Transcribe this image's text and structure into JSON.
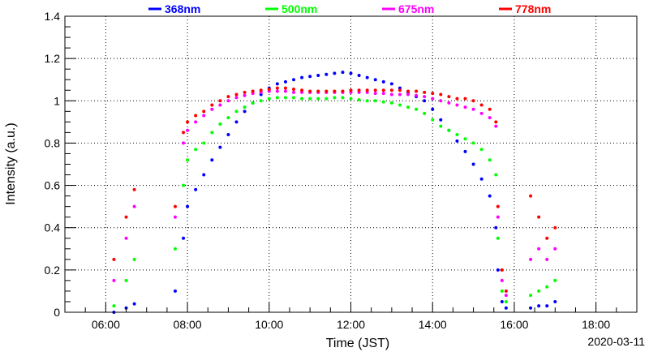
{
  "chart_data": {
    "type": "scatter",
    "xlabel": "Time (JST)",
    "ylabel": "Intensity (a.u.)",
    "date_label": "2020-03-11",
    "xlim": [
      5,
      19
    ],
    "ylim": [
      0,
      1.4
    ],
    "x_ticks": [
      "06:00",
      "08:00",
      "10:00",
      "12:00",
      "14:00",
      "16:00",
      "18:00"
    ],
    "y_ticks": [
      "0",
      "0.2",
      "0.4",
      "0.6",
      "0.8",
      "1",
      "1.2",
      "1.4"
    ],
    "grid": true,
    "legend_position": "top",
    "series": [
      {
        "name": "368nm",
        "color": "#0000ff",
        "x": [
          6.2,
          6.5,
          6.7,
          7.7,
          7.9,
          8.0,
          8.2,
          8.4,
          8.6,
          8.8,
          9.0,
          9.2,
          9.4,
          9.6,
          9.8,
          10.0,
          10.2,
          10.4,
          10.6,
          10.8,
          11.0,
          11.2,
          11.4,
          11.6,
          11.8,
          12.0,
          12.2,
          12.4,
          12.6,
          12.8,
          13.0,
          13.2,
          13.4,
          13.6,
          13.8,
          14.0,
          14.2,
          14.4,
          14.6,
          14.8,
          15.0,
          15.2,
          15.4,
          15.55,
          15.6,
          15.7,
          15.8,
          16.4,
          16.6,
          16.8,
          17.0
        ],
        "y": [
          0.0,
          0.02,
          0.04,
          0.1,
          0.35,
          0.5,
          0.58,
          0.65,
          0.72,
          0.78,
          0.84,
          0.9,
          0.95,
          0.99,
          1.03,
          1.06,
          1.08,
          1.09,
          1.1,
          1.11,
          1.115,
          1.12,
          1.125,
          1.13,
          1.135,
          1.13,
          1.12,
          1.11,
          1.1,
          1.09,
          1.08,
          1.06,
          1.04,
          1.02,
          1.0,
          0.96,
          0.91,
          0.86,
          0.81,
          0.76,
          0.7,
          0.63,
          0.55,
          0.4,
          0.2,
          0.05,
          0.02,
          0.02,
          0.03,
          0.03,
          0.05
        ]
      },
      {
        "name": "500nm",
        "color": "#00ff00",
        "x": [
          6.2,
          6.5,
          6.7,
          7.7,
          7.9,
          8.0,
          8.2,
          8.4,
          8.6,
          8.8,
          9.0,
          9.2,
          9.4,
          9.6,
          9.8,
          10.0,
          10.2,
          10.4,
          10.6,
          10.8,
          11.0,
          11.2,
          11.4,
          11.6,
          11.8,
          12.0,
          12.2,
          12.4,
          12.6,
          12.8,
          13.0,
          13.2,
          13.4,
          13.6,
          13.8,
          14.0,
          14.2,
          14.4,
          14.6,
          14.8,
          15.0,
          15.2,
          15.4,
          15.55,
          15.6,
          15.7,
          15.8,
          16.4,
          16.6,
          16.8,
          17.0
        ],
        "y": [
          0.03,
          0.15,
          0.25,
          0.3,
          0.6,
          0.72,
          0.77,
          0.8,
          0.85,
          0.89,
          0.92,
          0.95,
          0.97,
          0.99,
          1.0,
          1.01,
          1.015,
          1.015,
          1.015,
          1.01,
          1.01,
          1.01,
          1.01,
          1.015,
          1.015,
          1.01,
          1.005,
          1.0,
          1.0,
          0.995,
          0.99,
          0.98,
          0.97,
          0.96,
          0.94,
          0.91,
          0.88,
          0.86,
          0.84,
          0.82,
          0.8,
          0.77,
          0.72,
          0.65,
          0.35,
          0.1,
          0.05,
          0.08,
          0.1,
          0.12,
          0.15
        ]
      },
      {
        "name": "675nm",
        "color": "#ff00ff",
        "x": [
          6.2,
          6.5,
          6.7,
          7.7,
          7.9,
          8.0,
          8.2,
          8.4,
          8.6,
          8.8,
          9.0,
          9.2,
          9.4,
          9.6,
          9.8,
          10.0,
          10.2,
          10.4,
          10.6,
          10.8,
          11.0,
          11.2,
          11.4,
          11.6,
          11.8,
          12.0,
          12.2,
          12.4,
          12.6,
          12.8,
          13.0,
          13.2,
          13.4,
          13.6,
          13.8,
          14.0,
          14.2,
          14.4,
          14.6,
          14.8,
          15.0,
          15.2,
          15.4,
          15.55,
          15.6,
          15.7,
          15.8,
          16.4,
          16.6,
          16.8,
          17.0
        ],
        "y": [
          0.15,
          0.35,
          0.5,
          0.45,
          0.8,
          0.86,
          0.9,
          0.93,
          0.96,
          0.98,
          1.0,
          1.015,
          1.025,
          1.035,
          1.04,
          1.045,
          1.045,
          1.045,
          1.04,
          1.04,
          1.04,
          1.04,
          1.04,
          1.04,
          1.04,
          1.04,
          1.04,
          1.04,
          1.035,
          1.035,
          1.03,
          1.03,
          1.03,
          1.025,
          1.02,
          1.01,
          1.0,
          0.99,
          0.98,
          0.97,
          0.96,
          0.94,
          0.92,
          0.88,
          0.45,
          0.15,
          0.08,
          0.25,
          0.3,
          0.25,
          0.3
        ]
      },
      {
        "name": "778nm",
        "color": "#ff0000",
        "x": [
          6.2,
          6.5,
          6.7,
          7.7,
          7.9,
          8.0,
          8.2,
          8.4,
          8.6,
          8.8,
          9.0,
          9.2,
          9.4,
          9.6,
          9.8,
          10.0,
          10.2,
          10.4,
          10.6,
          10.8,
          11.0,
          11.2,
          11.4,
          11.6,
          11.8,
          12.0,
          12.2,
          12.4,
          12.6,
          12.8,
          13.0,
          13.2,
          13.4,
          13.6,
          13.8,
          14.0,
          14.2,
          14.4,
          14.6,
          14.8,
          15.0,
          15.2,
          15.4,
          15.55,
          15.6,
          15.7,
          15.8,
          16.4,
          16.6,
          16.8,
          17.0
        ],
        "y": [
          0.25,
          0.45,
          0.58,
          0.5,
          0.85,
          0.9,
          0.93,
          0.95,
          0.98,
          1.0,
          1.02,
          1.03,
          1.04,
          1.045,
          1.05,
          1.055,
          1.06,
          1.06,
          1.055,
          1.05,
          1.045,
          1.045,
          1.045,
          1.045,
          1.045,
          1.05,
          1.05,
          1.05,
          1.05,
          1.05,
          1.05,
          1.05,
          1.045,
          1.045,
          1.04,
          1.035,
          1.03,
          1.02,
          1.01,
          1.01,
          1.0,
          0.98,
          0.96,
          0.9,
          0.5,
          0.2,
          0.1,
          0.55,
          0.45,
          0.35,
          0.4
        ]
      }
    ]
  }
}
